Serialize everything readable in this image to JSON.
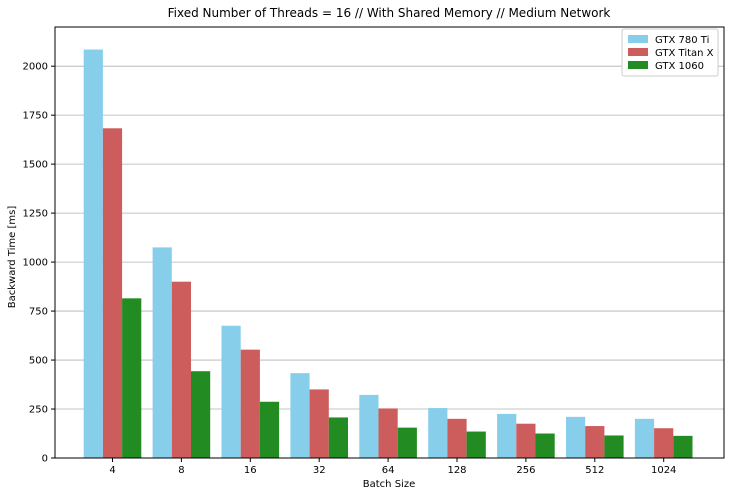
{
  "chart_data": {
    "type": "bar",
    "title": "Fixed Number of Threads = 16 // With Shared Memory // Medium Network",
    "xlabel": "Batch Size",
    "ylabel": "Backward Time [ms]",
    "categories": [
      "4",
      "8",
      "16",
      "32",
      "64",
      "128",
      "256",
      "512",
      "1024"
    ],
    "ylim": [
      0,
      2200
    ],
    "yticks": [
      0,
      250,
      500,
      750,
      1000,
      1250,
      1500,
      1750,
      2000
    ],
    "grid": "horizontal",
    "legend_position": "top-right",
    "series": [
      {
        "name": "GTX 780 Ti",
        "color": "#87CEEB",
        "values": [
          2085,
          1075,
          675,
          433,
          322,
          255,
          225,
          210,
          200
        ]
      },
      {
        "name": "GTX Titan X",
        "color": "#CD5C5C",
        "values": [
          1683,
          900,
          553,
          350,
          253,
          200,
          175,
          163,
          152
        ]
      },
      {
        "name": "GTX 1060",
        "color": "#228B22",
        "values": [
          815,
          443,
          287,
          207,
          155,
          135,
          125,
          115,
          113
        ]
      }
    ]
  }
}
